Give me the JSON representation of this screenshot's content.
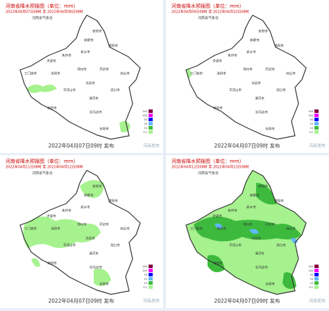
{
  "panels": [
    {
      "title": "河南省降水预报图（单位：mm）",
      "period": "2022年04月07日08时 至 2022年04月08日08时",
      "issued": "2022年04月07日09时 发布"
    },
    {
      "title": "河南省降水预报图（单位：mm）",
      "period": "2022年04月09日08时 至 2022年04月10日08时",
      "issued": "2022年04月07日09时 发布"
    },
    {
      "title": "河南省降水预报图（单位：mm）",
      "period": "2022年04月11日08时 至 2022年04月12日08时",
      "issued": "2022年04月07日09时 发布"
    },
    {
      "title": "河南省降水预报图（单位：mm）",
      "period": "2022年04月12日08时 至 2022年04月13日08时",
      "issued": "2022年04月07日09时 发布"
    }
  ],
  "agency": "河南省气象台",
  "watermark": "河南发布",
  "cities": [
    "安阳市",
    "鹤壁市",
    "濮阳市",
    "新乡市",
    "焦作市",
    "济源市",
    "三门峡市",
    "洛阳市",
    "郑州市",
    "开封市",
    "商丘市",
    "平顶山市",
    "许昌市",
    "漯河市",
    "周口市",
    "南阳市",
    "驻马店市",
    "信阳市"
  ],
  "legend": [
    {
      "label": "0.1",
      "color": "#a6f28f"
    },
    {
      "label": "10",
      "color": "#3dba3d"
    },
    {
      "label": "25",
      "color": "#61b8ff"
    },
    {
      "label": "50",
      "color": "#0000ff"
    },
    {
      "label": "100",
      "color": "#fa00fa"
    },
    {
      "label": "250",
      "color": "#800040"
    }
  ]
}
